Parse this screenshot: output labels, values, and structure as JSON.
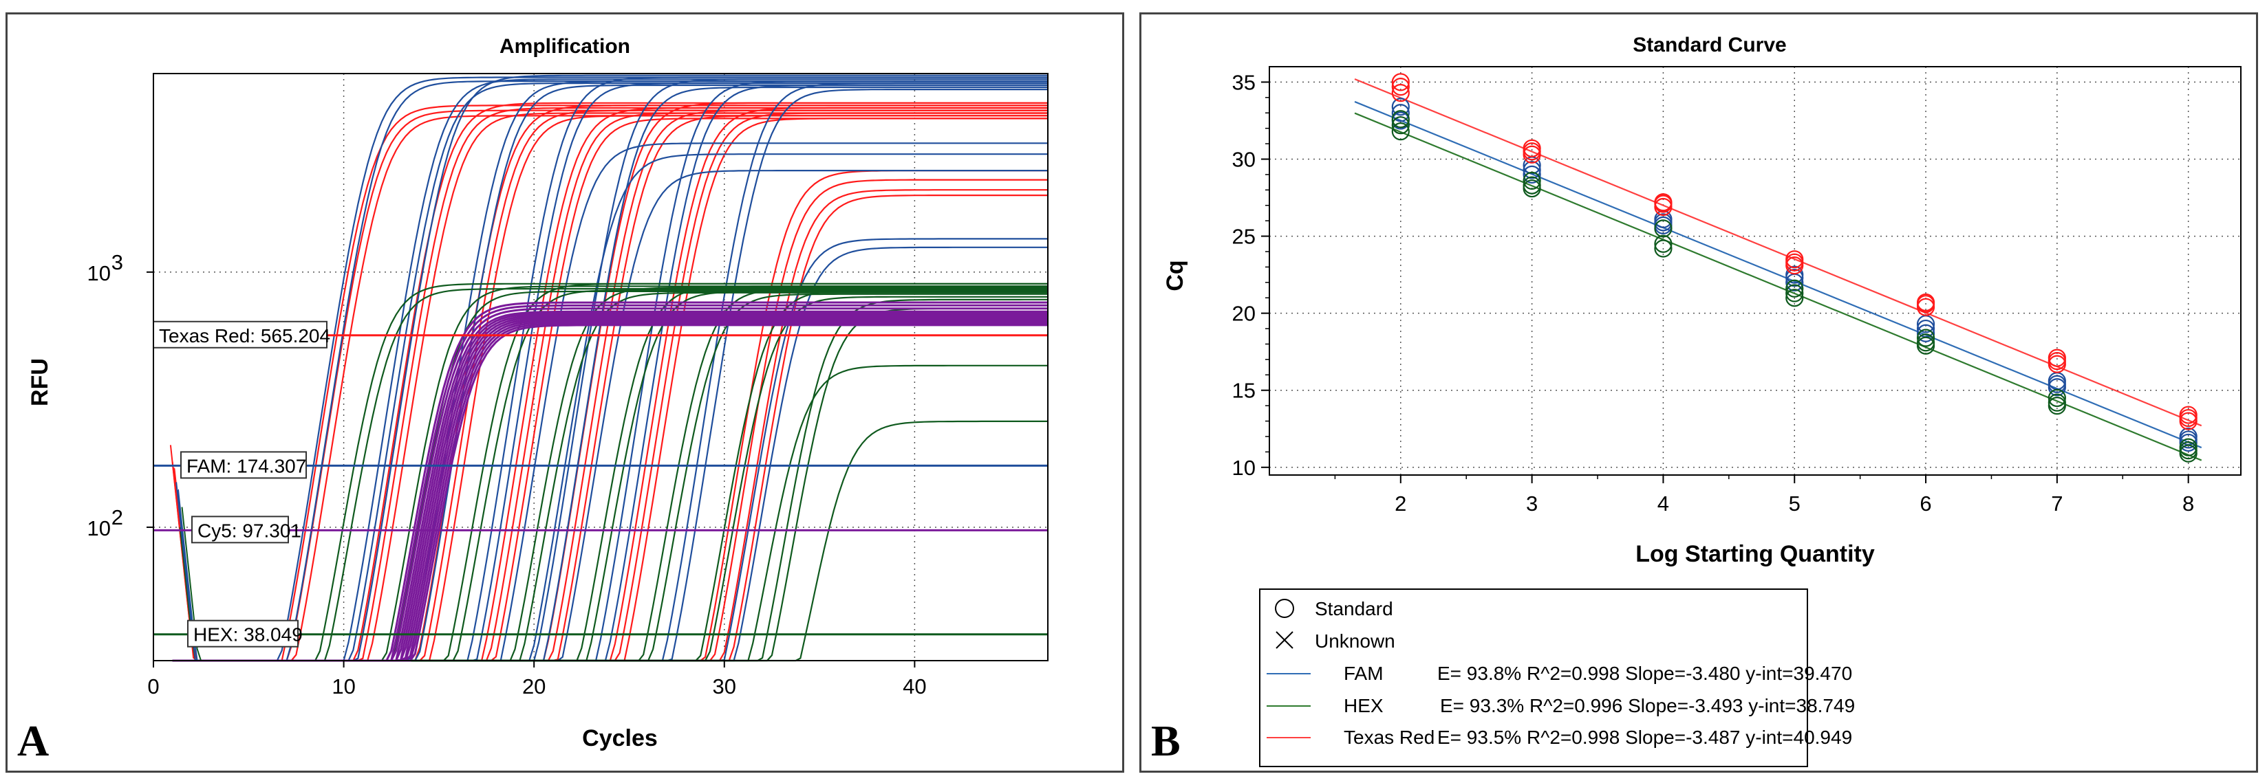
{
  "colors": {
    "FAM": "#1f4e9c",
    "HEX": "#0f5a1e",
    "TexasRed": "#ff1a1a",
    "Cy5": "#7a1a9a",
    "FAM_fit": "#2f6db5",
    "HEX_fit": "#2e7a2e",
    "TexasRed_fit": "#ff4040"
  },
  "chart_data": [
    {
      "panel_letter": "A",
      "type": "line",
      "title": "Amplification",
      "xlabel": "Cycles",
      "ylabel": "RFU",
      "xlim": [
        0,
        47
      ],
      "ylim": [
        30,
        6000
      ],
      "yscale": "log",
      "x_ticks": [
        "0",
        "10",
        "20",
        "30",
        "40"
      ],
      "y_ticks": [
        {
          "value": 1000,
          "base": "10",
          "exp": "3"
        },
        {
          "value": 100,
          "base": "10",
          "exp": "2"
        }
      ],
      "grid": true,
      "thresholds": [
        {
          "label": "Texas Red: 565.204",
          "value": 565.204,
          "color": "#ff1a1a"
        },
        {
          "label": "FAM: 174.307",
          "value": 174.307,
          "color": "#1f4e9c"
        },
        {
          "label": "Cy5: 97.301",
          "value": 97.301,
          "color": "#7a1a9a"
        },
        {
          "label": "HEX: 38.049",
          "value": 38.049,
          "color": "#0f5a1e"
        }
      ],
      "series": [
        {
          "channel": "TexasRed",
          "color": "#ff1a1a",
          "midpoints": [
            11.3,
            11.6,
            11.9,
            15.2,
            15.5,
            15.8,
            18.4,
            18.7,
            19.0,
            21.8,
            22.1,
            22.4,
            25.1,
            25.4,
            25.7,
            28.6,
            28.9,
            29.2
          ],
          "plateaus": [
            4500,
            4300,
            4100,
            4600,
            4400,
            4200,
            4500,
            4300,
            4100,
            4400,
            4200,
            4000,
            4600,
            4300,
            4100,
            4400,
            4200,
            4000
          ]
        },
        {
          "channel": "TexasRed",
          "color": "#ff1a1a",
          "midpoints": [
            33.0,
            33.4,
            33.8,
            34.2
          ],
          "plateaus": [
            2500,
            2300,
            2100,
            2000
          ]
        },
        {
          "channel": "FAM",
          "color": "#1f4e9c",
          "midpoints": [
            11.4,
            11.8,
            14.8,
            15.1,
            15.5,
            18.2,
            18.6,
            21.3,
            21.7,
            24.8,
            25.2,
            28.0,
            28.5,
            31.5,
            31.9
          ],
          "plateaus": [
            5800,
            5600,
            5700,
            5500,
            5900,
            5600,
            5400,
            5800,
            5500,
            5700,
            5300,
            5600,
            5400,
            5500,
            5200
          ]
        },
        {
          "channel": "FAM",
          "color": "#1f4e9c",
          "midpoints": [
            22.5,
            24.0,
            25.5,
            33.5,
            34.0
          ],
          "plateaus": [
            3200,
            2900,
            2500,
            1350,
            1250
          ]
        },
        {
          "channel": "HEX",
          "color": "#0f5a1e",
          "midpoints": [
            11.8,
            12.2,
            15.3,
            15.7,
            18.6,
            19.0,
            22.0,
            22.4,
            25.5,
            25.9,
            28.8,
            29.2,
            31.8,
            32.2,
            35.0,
            35.4
          ],
          "plateaus": [
            900,
            860,
            880,
            840,
            900,
            850,
            870,
            830,
            880,
            840,
            860,
            820,
            850,
            800,
            780,
            720
          ]
        },
        {
          "channel": "HEX",
          "color": "#0f5a1e",
          "midpoints": [
            33.8,
            36.0
          ],
          "plateaus": [
            430,
            260
          ]
        },
        {
          "channel": "Cy5",
          "color": "#7a1a9a",
          "midpoints": [
            15.4,
            15.5,
            15.6,
            15.7,
            15.8,
            15.9,
            16.0,
            16.1,
            16.2,
            16.3,
            16.4,
            16.5
          ],
          "plateaus": [
            760,
            740,
            720,
            700,
            690,
            680,
            670,
            660,
            650,
            640,
            630,
            620
          ]
        }
      ]
    },
    {
      "panel_letter": "B",
      "type": "scatter",
      "title": "Standard Curve",
      "xlabel": "Log Starting Quantity",
      "ylabel": "Cq",
      "xlim": [
        1.0,
        8.4
      ],
      "ylim": [
        9.5,
        36
      ],
      "x_ticks": [
        "2",
        "3",
        "4",
        "5",
        "6",
        "7",
        "8"
      ],
      "y_ticks": [
        "10",
        "15",
        "20",
        "25",
        "30",
        "35"
      ],
      "grid": true,
      "series": [
        {
          "name": "FAM",
          "color": "#1f4e9c",
          "slope": -3.48,
          "intercept": 39.47,
          "x": [
            2,
            2,
            2,
            3,
            3,
            3,
            4,
            4,
            4,
            5,
            5,
            5,
            6,
            6,
            6,
            7,
            7,
            7,
            8,
            8,
            8
          ],
          "y": [
            32.5,
            33.0,
            33.4,
            29.0,
            29.3,
            29.6,
            25.7,
            25.9,
            26.1,
            22.0,
            22.3,
            22.5,
            18.7,
            19.0,
            19.3,
            15.2,
            15.4,
            15.6,
            11.6,
            11.8,
            12.0
          ]
        },
        {
          "name": "HEX",
          "color": "#0f5a1e",
          "slope": -3.493,
          "intercept": 38.749,
          "x": [
            2,
            2,
            2,
            3,
            3,
            3,
            4,
            4,
            4,
            5,
            5,
            5,
            6,
            6,
            6,
            7,
            7,
            7,
            8,
            8,
            8
          ],
          "y": [
            31.8,
            32.2,
            32.6,
            28.1,
            28.3,
            28.6,
            24.2,
            24.5,
            25.5,
            21.0,
            21.3,
            21.6,
            17.9,
            18.1,
            18.4,
            14.0,
            14.2,
            14.5,
            10.9,
            11.1,
            11.3
          ]
        },
        {
          "name": "Texas Red",
          "color": "#ff1a1a",
          "slope": -3.487,
          "intercept": 40.949,
          "x": [
            2,
            2,
            2,
            3,
            3,
            3,
            4,
            4,
            4,
            5,
            5,
            5,
            6,
            6,
            6,
            7,
            7,
            7,
            8,
            8,
            8
          ],
          "y": [
            34.3,
            34.7,
            35.0,
            30.3,
            30.5,
            30.7,
            26.9,
            27.1,
            27.2,
            23.1,
            23.3,
            23.5,
            20.4,
            20.6,
            20.7,
            16.7,
            16.9,
            17.1,
            13.0,
            13.2,
            13.4
          ]
        }
      ],
      "legend": {
        "standard_label": "Standard",
        "unknown_label": "Unknown",
        "entries": [
          {
            "label": "FAM",
            "stats": "E= 93.8% R^2=0.998 Slope=-3.480 y-int=39.470",
            "color": "#2f6db5"
          },
          {
            "label": "HEX",
            "stats": "E= 93.3% R^2=0.996 Slope=-3.493 y-int=38.749",
            "color": "#2e7a2e"
          },
          {
            "label": "Texas Red",
            "stats": "E= 93.5% R^2=0.998 Slope=-3.487 y-int=40.949",
            "color": "#ff4040"
          }
        ]
      }
    }
  ]
}
